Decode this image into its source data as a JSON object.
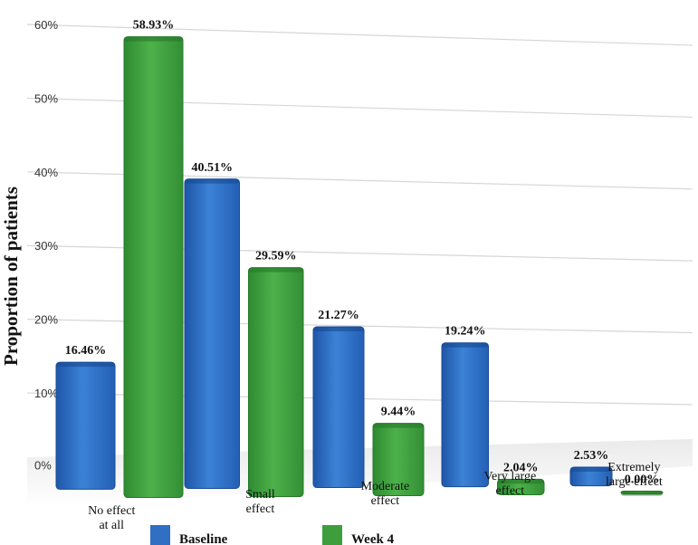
{
  "chart_data": {
    "type": "bar",
    "categories": [
      [
        "No effect",
        "at all"
      ],
      [
        "Small",
        "effect"
      ],
      [
        "Moderate",
        "effect"
      ],
      [
        "Very large",
        "effect"
      ],
      [
        "Extremely",
        "large effect"
      ]
    ],
    "series": [
      {
        "name": "Baseline",
        "values": [
          16.46,
          40.51,
          21.27,
          19.24,
          2.53
        ],
        "labels": [
          "16.46%",
          "40.51%",
          "21.27%",
          "19.24%",
          "2.53%"
        ],
        "color": "#2f6fc4"
      },
      {
        "name": "Week 4",
        "values": [
          58.93,
          29.59,
          9.44,
          2.04,
          0.0
        ],
        "labels": [
          "58.93%",
          "29.59%",
          "9.44%",
          "2.04%",
          "0.00%"
        ],
        "color": "#3e9e3c"
      }
    ],
    "ylabel": "Proportion of patients",
    "yticks": [
      "0%",
      "10%",
      "20%",
      "30%",
      "40%",
      "50%",
      "60%"
    ],
    "ylim": [
      0,
      60
    ],
    "grid": true,
    "legend_position": "bottom"
  }
}
